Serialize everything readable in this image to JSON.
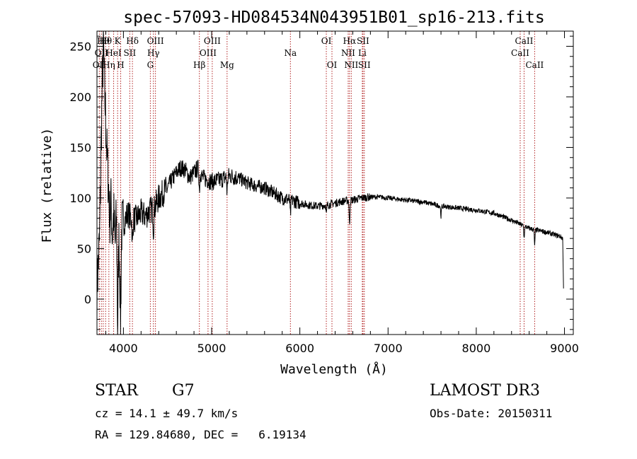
{
  "chart_data": {
    "type": "line",
    "title": "spec-57093-HD084534N043951B01_sp16-213.fits",
    "xlabel": "Wavelength (Å)",
    "ylabel": "Flux (relative)",
    "xlim": [
      3700,
      9100
    ],
    "ylim": [
      -35,
      265
    ],
    "xticks": [
      4000,
      5000,
      6000,
      7000,
      8000,
      9000
    ],
    "yticks": [
      0,
      50,
      100,
      150,
      200,
      250
    ],
    "x_minor_step": 200,
    "y_minor_step": 10,
    "spectrum_anchors": [
      [
        3700,
        10
      ],
      [
        3730,
        60
      ],
      [
        3750,
        170
      ],
      [
        3765,
        230
      ],
      [
        3775,
        250
      ],
      [
        3785,
        210
      ],
      [
        3800,
        175
      ],
      [
        3815,
        140
      ],
      [
        3830,
        115
      ],
      [
        3845,
        80
      ],
      [
        3860,
        95
      ],
      [
        3875,
        60
      ],
      [
        3890,
        85
      ],
      [
        3905,
        50
      ],
      [
        3920,
        80
      ],
      [
        3935,
        5
      ],
      [
        3950,
        60
      ],
      [
        3965,
        10
      ],
      [
        3980,
        70
      ],
      [
        4000,
        75
      ],
      [
        4050,
        85
      ],
      [
        4100,
        78
      ],
      [
        4150,
        80
      ],
      [
        4200,
        85
      ],
      [
        4250,
        82
      ],
      [
        4300,
        88
      ],
      [
        4350,
        90
      ],
      [
        4400,
        100
      ],
      [
        4450,
        105
      ],
      [
        4500,
        110
      ],
      [
        4550,
        118
      ],
      [
        4600,
        125
      ],
      [
        4650,
        130
      ],
      [
        4700,
        128
      ],
      [
        4750,
        120
      ],
      [
        4800,
        125
      ],
      [
        4850,
        130
      ],
      [
        4900,
        120
      ],
      [
        4950,
        118
      ],
      [
        5000,
        116
      ],
      [
        5100,
        118
      ],
      [
        5200,
        122
      ],
      [
        5300,
        120
      ],
      [
        5400,
        115
      ],
      [
        5500,
        112
      ],
      [
        5600,
        110
      ],
      [
        5700,
        105
      ],
      [
        5800,
        100
      ],
      [
        5900,
        98
      ],
      [
        6000,
        95
      ],
      [
        6100,
        93
      ],
      [
        6200,
        92
      ],
      [
        6300,
        93
      ],
      [
        6400,
        95
      ],
      [
        6500,
        97
      ],
      [
        6600,
        98
      ],
      [
        6700,
        100
      ],
      [
        6800,
        101
      ],
      [
        6900,
        101
      ],
      [
        7000,
        100
      ],
      [
        7200,
        98
      ],
      [
        7400,
        96
      ],
      [
        7600,
        92
      ],
      [
        7800,
        90
      ],
      [
        8000,
        88
      ],
      [
        8200,
        85
      ],
      [
        8400,
        78
      ],
      [
        8600,
        70
      ],
      [
        8800,
        66
      ],
      [
        8950,
        62
      ],
      [
        8980,
        60
      ],
      [
        8990,
        5
      ]
    ],
    "absorption_dips": [
      [
        3934,
        40
      ],
      [
        3969,
        40
      ],
      [
        4102,
        25
      ],
      [
        4340,
        20
      ],
      [
        4861,
        20
      ],
      [
        5175,
        15
      ],
      [
        5893,
        15
      ],
      [
        6300,
        10
      ],
      [
        6563,
        25
      ],
      [
        7600,
        10
      ],
      [
        8542,
        12
      ],
      [
        8662,
        15
      ]
    ],
    "lines": [
      {
        "wave": 3727,
        "label": "OII",
        "row": 3
      },
      {
        "wave": 3750,
        "label": "OII",
        "row": 2
      },
      {
        "wave": 3771,
        "label": "Hθ",
        "row": 1
      },
      {
        "wave": 3798,
        "label": "Hθ",
        "row": 1
      },
      {
        "wave": 3835,
        "label": "Hη",
        "row": 3
      },
      {
        "wave": 3889,
        "label": "HeI",
        "row": 2
      },
      {
        "wave": 3934,
        "label": "K",
        "row": 1
      },
      {
        "wave": 3969,
        "label": "H",
        "row": 3
      },
      {
        "wave": 4072,
        "label": "SII",
        "row": 2
      },
      {
        "wave": 4102,
        "label": "Hδ",
        "row": 1
      },
      {
        "wave": 4305,
        "label": "G",
        "row": 3
      },
      {
        "wave": 4340,
        "label": "Hγ",
        "row": 2
      },
      {
        "wave": 4363,
        "label": "OIII",
        "row": 1
      },
      {
        "wave": 4861,
        "label": "Hβ",
        "row": 3
      },
      {
        "wave": 4959,
        "label": "OIII",
        "row": 2
      },
      {
        "wave": 5007,
        "label": "OIII",
        "row": 1
      },
      {
        "wave": 5175,
        "label": "Mg",
        "row": 3
      },
      {
        "wave": 5893,
        "label": "Na",
        "row": 2
      },
      {
        "wave": 6300,
        "label": "OI",
        "row": 1
      },
      {
        "wave": 6364,
        "label": "OI",
        "row": 3
      },
      {
        "wave": 6548,
        "label": "NII",
        "row": 2
      },
      {
        "wave": 6563,
        "label": "Hα",
        "row": 1
      },
      {
        "wave": 6583,
        "label": "NII",
        "row": 3
      },
      {
        "wave": 6708,
        "label": "Li",
        "row": 2
      },
      {
        "wave": 6716,
        "label": "SII",
        "row": 1
      },
      {
        "wave": 6731,
        "label": "SII",
        "row": 3
      },
      {
        "wave": 8498,
        "label": "CaII",
        "row": 2
      },
      {
        "wave": 8542,
        "label": "CaII",
        "row": 1
      },
      {
        "wave": 8662,
        "label": "CaII",
        "row": 3
      }
    ]
  },
  "info": {
    "object_class": "STAR",
    "subclass": "G7",
    "survey": "LAMOST DR3",
    "redshift": "cz = 14.1 ± 49.7 km/s",
    "obs_date": "Obs-Date: 20150311",
    "coords": "RA = 129.84680, DEC =   6.19134"
  }
}
